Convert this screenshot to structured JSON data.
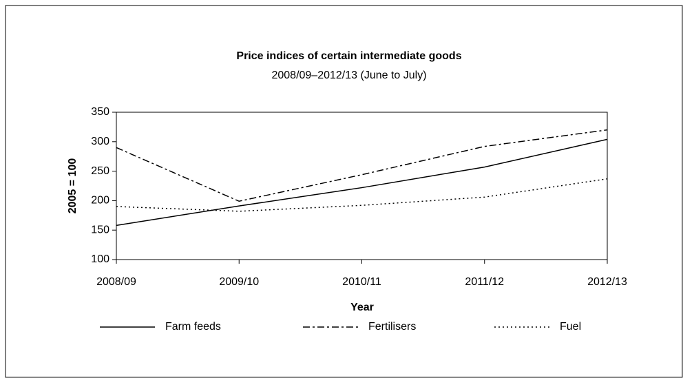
{
  "chart_data": {
    "type": "line",
    "title": "Price indices of certain intermediate goods",
    "subtitle": "2008/09–2012/13 (June to July)",
    "x_label": "Year",
    "y_label": "2005 = 100",
    "categories": [
      "2008/09",
      "2009/10",
      "2010/11",
      "2011/12",
      "2012/13"
    ],
    "series": [
      {
        "name": "Farm feeds",
        "color": "#000000",
        "dash": "solid",
        "values": [
          158,
          191,
          222,
          257,
          304
        ]
      },
      {
        "name": "Fertilisers",
        "color": "#000000",
        "dash": "dashdot",
        "values": [
          290,
          199,
          244,
          292,
          320
        ]
      },
      {
        "name": "Fuel",
        "color": "#000000",
        "dash": "dotted",
        "values": [
          190,
          182,
          192,
          206,
          237
        ]
      }
    ],
    "ylim": [
      100,
      350
    ],
    "yticks": [
      100,
      150,
      200,
      250,
      300,
      350
    ],
    "grid": false,
    "legend": "bottom"
  }
}
